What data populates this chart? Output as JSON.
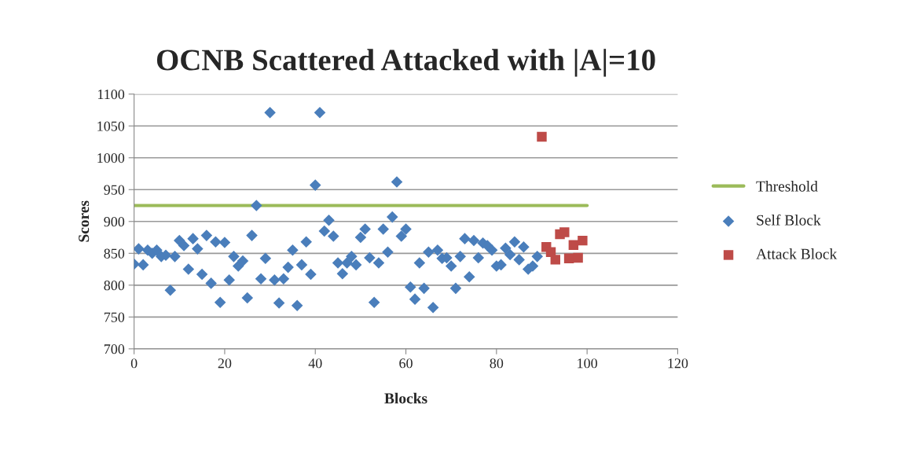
{
  "chart_data": {
    "type": "scatter",
    "title": "OCNB Scattered Attacked with |A|=10",
    "xlabel": "Blocks",
    "ylabel": "Scores",
    "xlim": [
      0,
      120
    ],
    "xticks": [
      0,
      20,
      40,
      60,
      80,
      100,
      120
    ],
    "ylim": [
      700,
      1100
    ],
    "yticks": [
      700,
      750,
      800,
      850,
      900,
      950,
      1000,
      1050,
      1100
    ],
    "grid": "y",
    "legend": "right",
    "series": [
      {
        "name": "Threshold",
        "type": "line",
        "color": "#9bbb59",
        "marker": "none",
        "line_style": "solid",
        "x": [
          0,
          100
        ],
        "values": [
          925,
          925
        ]
      },
      {
        "name": "Self Block",
        "color": "#4a7ebb",
        "marker": "diamond",
        "x": [
          0,
          1,
          2,
          3,
          4,
          5,
          6,
          7,
          8,
          9,
          10,
          11,
          12,
          13,
          14,
          15,
          16,
          17,
          18,
          19,
          20,
          21,
          22,
          23,
          24,
          25,
          26,
          27,
          28,
          29,
          30,
          31,
          32,
          33,
          34,
          35,
          36,
          37,
          38,
          39,
          40,
          41,
          42,
          43,
          44,
          45,
          46,
          47,
          48,
          49,
          50,
          51,
          52,
          53,
          54,
          55,
          56,
          57,
          58,
          59,
          60,
          61,
          62,
          63,
          64,
          65,
          66,
          67,
          68,
          69,
          70,
          71,
          72,
          73,
          74,
          75,
          76,
          77,
          78,
          79,
          80,
          81,
          82,
          83,
          84,
          85,
          86,
          87,
          88,
          89
        ],
        "values": [
          833,
          857,
          832,
          855,
          850,
          855,
          845,
          847,
          792,
          845,
          870,
          862,
          825,
          873,
          857,
          817,
          878,
          803,
          868,
          773,
          867,
          808,
          845,
          830,
          838,
          780,
          878,
          925,
          810,
          842,
          1071,
          808,
          772,
          810,
          828,
          855,
          768,
          832,
          868,
          817,
          957,
          1071,
          885,
          902,
          877,
          835,
          818,
          835,
          845,
          832,
          875,
          888,
          843,
          773,
          835,
          888,
          852,
          907,
          962,
          877,
          888,
          797,
          778,
          835,
          795,
          852,
          765,
          855,
          842,
          843,
          830,
          795,
          845,
          873,
          813,
          870,
          843,
          866,
          862,
          855,
          830,
          832,
          858,
          848,
          868,
          840,
          860,
          825,
          830,
          845
        ]
      },
      {
        "name": "Attack Block",
        "color": "#be4b48",
        "marker": "square",
        "x": [
          90,
          91,
          92,
          93,
          94,
          95,
          96,
          97,
          98,
          99
        ],
        "values": [
          1033,
          860,
          852,
          840,
          880,
          883,
          842,
          863,
          843,
          870
        ]
      }
    ]
  }
}
